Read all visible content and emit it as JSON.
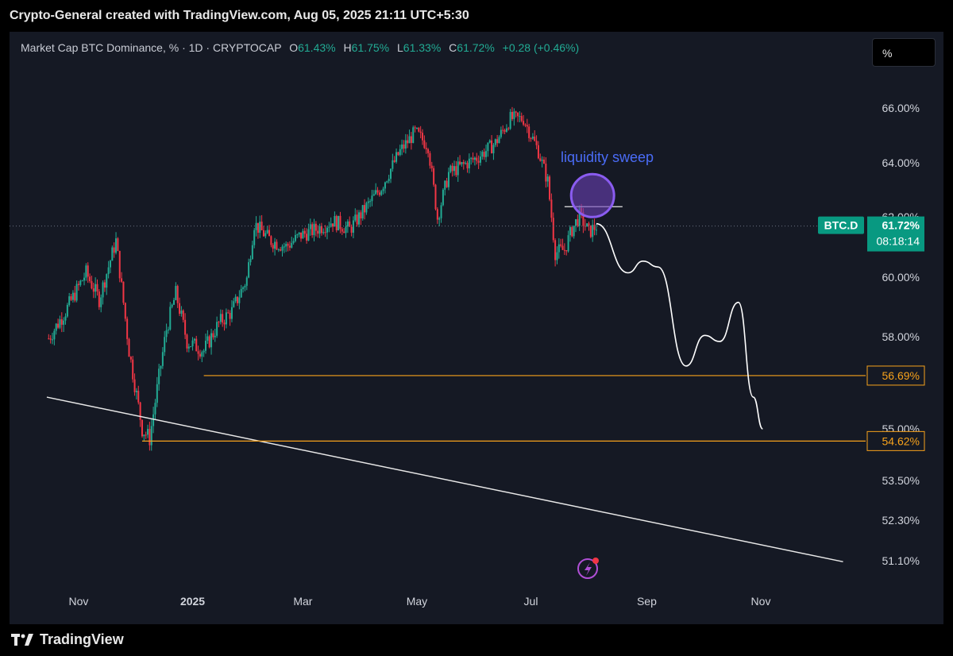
{
  "header": {
    "title": "Crypto-General created with TradingView.com, Aug 05, 2025 21:11 UTC+5:30"
  },
  "legend": {
    "symbol": "Market Cap BTC Dominance, % · 1D · CRYPTOCAP",
    "o_label": "O",
    "o_value": "61.43%",
    "h_label": "H",
    "h_value": "61.75%",
    "l_label": "L",
    "l_value": "61.33%",
    "c_label": "C",
    "c_value": "61.72%",
    "change": "+0.28 (+0.46%)"
  },
  "scale_button": "%",
  "footer": {
    "brand": "TradingView"
  },
  "colors": {
    "up": "#22ab94",
    "down": "#f23645",
    "bg": "#151924",
    "level": "#f7a21b",
    "annotation": "#4a6cf7",
    "sweep_circle": "#6a3fb5",
    "price_badge": "#089981"
  },
  "chart_data": {
    "type": "candlestick",
    "title": "Market Cap BTC Dominance, % · 1D · CRYPTOCAP",
    "x_labels": [
      "Nov",
      "2025",
      "Mar",
      "May",
      "Jul",
      "Sep",
      "Nov"
    ],
    "y_ticks": [
      "66.00%",
      "64.00%",
      "62.00%",
      "60.00%",
      "58.00%",
      "55.00%",
      "53.50%",
      "52.30%",
      "51.10%"
    ],
    "y_scale": "log",
    "grid": false,
    "series": [
      {
        "name": "BTC.D",
        "close_path": [
          [
            "2024-10-16",
            57.9
          ],
          [
            "2024-10-25",
            58.8
          ],
          [
            "2024-11-05",
            60.1
          ],
          [
            "2024-11-12",
            59.2
          ],
          [
            "2024-11-21",
            61.2
          ],
          [
            "2024-11-28",
            57.5
          ],
          [
            "2024-12-05",
            55.0
          ],
          [
            "2024-12-09",
            54.7
          ],
          [
            "2024-12-18",
            58.2
          ],
          [
            "2024-12-23",
            59.4
          ],
          [
            "2024-12-29",
            57.8
          ],
          [
            "2025-01-07",
            57.5
          ],
          [
            "2025-01-15",
            58.4
          ],
          [
            "2025-01-22",
            58.8
          ],
          [
            "2025-01-30",
            59.9
          ],
          [
            "2025-02-03",
            61.8
          ],
          [
            "2025-02-12",
            61.2
          ],
          [
            "2025-02-20",
            61.0
          ],
          [
            "2025-02-28",
            61.4
          ],
          [
            "2025-03-08",
            61.6
          ],
          [
            "2025-03-17",
            61.9
          ],
          [
            "2025-03-26",
            61.6
          ],
          [
            "2025-04-03",
            62.3
          ],
          [
            "2025-04-12",
            63.1
          ],
          [
            "2025-04-22",
            64.4
          ],
          [
            "2025-04-30",
            65.1
          ],
          [
            "2025-05-07",
            64.6
          ],
          [
            "2025-05-12",
            62.0
          ],
          [
            "2025-05-18",
            63.6
          ],
          [
            "2025-05-26",
            63.9
          ],
          [
            "2025-06-03",
            64.2
          ],
          [
            "2025-06-12",
            64.7
          ],
          [
            "2025-06-20",
            65.6
          ],
          [
            "2025-06-27",
            65.6
          ],
          [
            "2025-07-05",
            64.4
          ],
          [
            "2025-07-10",
            63.3
          ],
          [
            "2025-07-14",
            60.8
          ],
          [
            "2025-07-19",
            60.9
          ],
          [
            "2025-07-23",
            61.6
          ],
          [
            "2025-07-27",
            62.1
          ],
          [
            "2025-08-01",
            61.5
          ],
          [
            "2025-08-05",
            61.72
          ]
        ],
        "last": {
          "label": "BTC.D",
          "value": "61.72%",
          "countdown": "08:18:14"
        }
      }
    ],
    "annotations": {
      "text": "liquidity sweep",
      "levels": [
        {
          "label": "56.69%",
          "value": 56.69
        },
        {
          "label": "54.62%",
          "value": 54.62
        }
      ],
      "sweep_line": {
        "value": 62.4
      },
      "projection_path": [
        [
          "2025-08-05",
          61.8
        ],
        [
          "2025-08-22",
          60.1
        ],
        [
          "2025-08-30",
          60.5
        ],
        [
          "2025-09-07",
          60.3
        ],
        [
          "2025-09-22",
          57.0
        ],
        [
          "2025-10-02",
          58.0
        ],
        [
          "2025-10-10",
          57.8
        ],
        [
          "2025-10-20",
          59.1
        ],
        [
          "2025-10-28",
          56.0
        ],
        [
          "2025-11-02",
          55.0
        ]
      ],
      "trendline": [
        [
          "2024-10-15",
          56.0
        ],
        [
          "2025-12-15",
          51.0
        ]
      ]
    }
  }
}
